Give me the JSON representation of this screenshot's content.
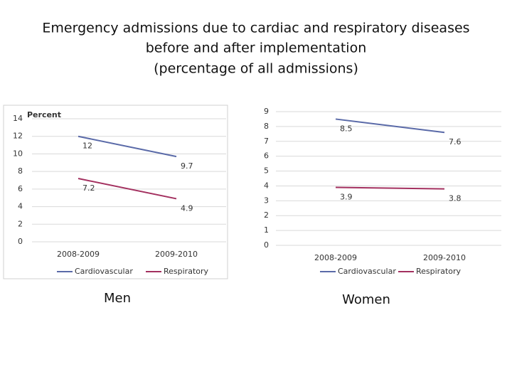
{
  "title": [
    "Emergency admissions due to cardiac and respiratory diseases",
    "before and after implementation",
    "(percentage of all admissions)"
  ],
  "chart_data": [
    {
      "type": "line",
      "caption": "Men",
      "ylabel": "Percent",
      "categories": [
        "2008-2009",
        "2009-2010"
      ],
      "series": [
        {
          "name": "Cardiovascular",
          "color": "#5a6aa8",
          "values": [
            12,
            9.7
          ]
        },
        {
          "name": "Respiratory",
          "color": "#a3305f",
          "values": [
            7.2,
            4.9
          ]
        }
      ],
      "ylim": [
        0,
        14
      ],
      "yticks": [
        0,
        2,
        4,
        6,
        8,
        10,
        12,
        14
      ],
      "grid": true,
      "legend": "bottom"
    },
    {
      "type": "line",
      "caption": "Women",
      "categories": [
        "2008-2009",
        "2009-2010"
      ],
      "series": [
        {
          "name": "Cardiovascular",
          "color": "#5a6aa8",
          "values": [
            8.5,
            7.6
          ]
        },
        {
          "name": "Respiratory",
          "color": "#a3305f",
          "values": [
            3.9,
            3.8
          ]
        }
      ],
      "ylim": [
        0,
        9
      ],
      "yticks": [
        0,
        1,
        2,
        3,
        4,
        5,
        6,
        7,
        8,
        9
      ],
      "grid": true,
      "legend": "bottom"
    }
  ]
}
